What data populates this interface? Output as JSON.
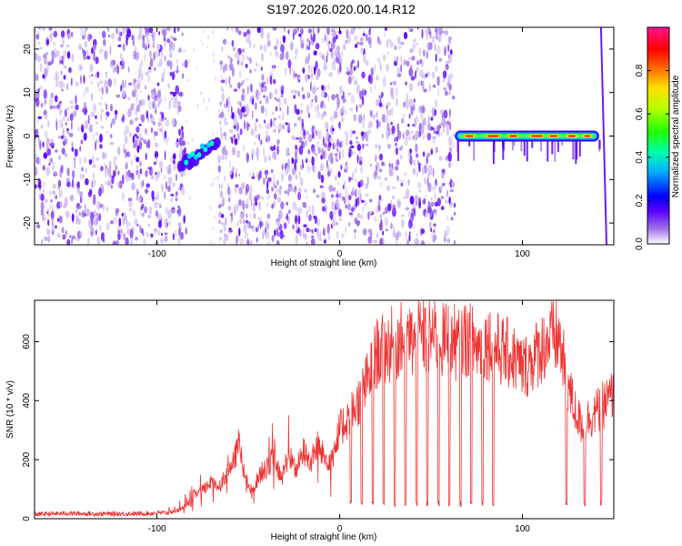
{
  "title": "S197.2026.020.00.14.R12",
  "chart_data": [
    {
      "type": "heatmap",
      "name": "spectrogram",
      "xlabel": "Height of straight line (km)",
      "ylabel": "Frequency (Hz)",
      "xlim": [
        -167,
        150
      ],
      "ylim": [
        -25,
        25
      ],
      "xticks": [
        -100,
        0,
        100
      ],
      "yticks": [
        -20,
        -10,
        0,
        10,
        20
      ],
      "xtick_labels": [
        "-100",
        "0",
        "100"
      ],
      "ytick_labels": [
        "-20",
        "-10",
        "0",
        "10",
        "20"
      ],
      "noise_regions": [
        [
          -167,
          -84
        ],
        [
          -66,
          63
        ]
      ],
      "features": [
        {
          "label": "weak chirp",
          "x_start": -87,
          "x_end": -67,
          "y_start": -7,
          "y_end": -2
        },
        {
          "label": "strong tone",
          "x_start": 63,
          "x_end": 142,
          "y": 0
        }
      ],
      "colorbar": {
        "label": "Normalized spectral amplitude",
        "range": [
          0.0,
          1.0
        ],
        "ticks": [
          0.0,
          0.2,
          0.4,
          0.6,
          0.8
        ],
        "tick_labels": [
          "0.0",
          "0.2",
          "0.4",
          "0.6",
          "0.8"
        ],
        "colormap": [
          "#ffffff",
          "#8a2be2",
          "#4b00ff",
          "#0000ff",
          "#00bfff",
          "#00ff80",
          "#80ff00",
          "#ffff00",
          "#ff8000",
          "#ff0000",
          "#ff1493"
        ]
      }
    },
    {
      "type": "line",
      "name": "snr",
      "xlabel": "Height of straight line (km)",
      "ylabel": "SNR (10 * v/v)",
      "xlim": [
        -167,
        150
      ],
      "ylim": [
        0,
        740
      ],
      "xticks": [
        -100,
        0,
        100
      ],
      "yticks": [
        0,
        200,
        400,
        600
      ],
      "xtick_labels": [
        "-100",
        "0",
        "100"
      ],
      "ytick_labels": [
        "0",
        "200",
        "400",
        "600"
      ],
      "color": "#ee3333",
      "series": [
        {
          "name": "SNR",
          "x": [
            -167,
            -150,
            -130,
            -110,
            -95,
            -88,
            -82,
            -80,
            -75,
            -70,
            -66,
            -62,
            -58,
            -55,
            -52,
            -48,
            -44,
            -40,
            -36,
            -32,
            -28,
            -24,
            -20,
            -16,
            -12,
            -8,
            -4,
            0,
            4,
            8,
            12,
            16,
            20,
            24,
            28,
            32,
            36,
            40,
            44,
            48,
            52,
            56,
            60,
            64,
            68,
            72,
            76,
            80,
            84,
            88,
            92,
            96,
            100,
            104,
            108,
            112,
            116,
            120,
            124,
            128,
            132,
            136,
            140,
            145,
            150
          ],
          "y": [
            15,
            18,
            16,
            17,
            20,
            30,
            55,
            80,
            95,
            125,
            110,
            150,
            190,
            260,
            140,
            90,
            150,
            170,
            210,
            130,
            220,
            160,
            230,
            190,
            250,
            200,
            210,
            300,
            340,
            370,
            420,
            480,
            560,
            570,
            590,
            600,
            610,
            600,
            620,
            610,
            630,
            600,
            620,
            590,
            610,
            600,
            580,
            600,
            590,
            570,
            560,
            540,
            510,
            530,
            560,
            590,
            610,
            610,
            480,
            380,
            320,
            340,
            360,
            390,
            420
          ]
        }
      ],
      "dropouts_x": [
        6,
        12,
        18,
        24,
        30,
        36,
        42,
        48,
        54,
        60,
        66,
        72,
        78,
        84,
        124,
        134,
        143
      ]
    }
  ]
}
